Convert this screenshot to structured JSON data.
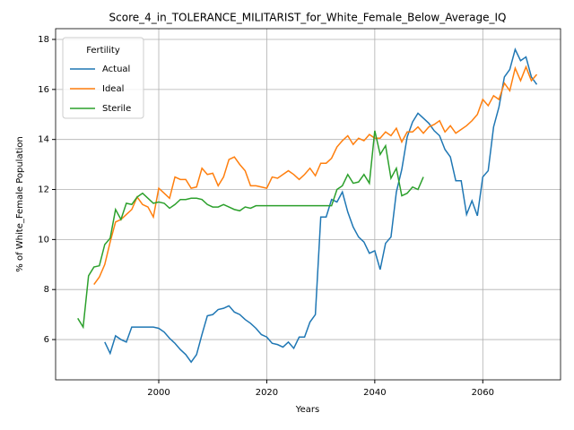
{
  "chart_data": {
    "type": "line",
    "title": "Score_4_in_TOLERANCE_MILITARIST_for_White_Female_Below_Average_IQ",
    "xlabel": "Years",
    "ylabel": "% of White_Female Population",
    "x": [
      1985,
      1986,
      1987,
      1988,
      1989,
      1990,
      1991,
      1992,
      1993,
      1994,
      1995,
      1996,
      1997,
      1998,
      1999,
      2000,
      2001,
      2002,
      2003,
      2004,
      2005,
      2006,
      2007,
      2008,
      2009,
      2010,
      2011,
      2012,
      2013,
      2014,
      2015,
      2016,
      2017,
      2018,
      2019,
      2020,
      2021,
      2022,
      2023,
      2024,
      2025,
      2026,
      2027,
      2028,
      2029,
      2030,
      2031,
      2032,
      2033,
      2034,
      2035,
      2036,
      2037,
      2038,
      2039,
      2040,
      2041,
      2042,
      2043,
      2044,
      2045,
      2046,
      2047,
      2048,
      2049,
      2050,
      2051,
      2052,
      2053,
      2054,
      2055,
      2056,
      2057,
      2058,
      2059,
      2060,
      2061,
      2062,
      2063,
      2064,
      2065,
      2066,
      2067,
      2068,
      2069,
      2070
    ],
    "series": [
      {
        "name": "Actual",
        "color": "#1f77b4",
        "values": [
          null,
          null,
          null,
          null,
          null,
          5.9,
          5.45,
          6.15,
          6.0,
          5.9,
          6.5,
          6.5,
          6.5,
          6.5,
          6.5,
          6.45,
          6.3,
          6.05,
          5.85,
          5.6,
          5.4,
          5.1,
          5.4,
          6.2,
          6.95,
          7.0,
          7.2,
          7.25,
          7.35,
          7.1,
          7.0,
          6.8,
          6.65,
          6.45,
          6.2,
          6.1,
          5.85,
          5.8,
          5.7,
          5.9,
          5.65,
          6.1,
          6.1,
          6.7,
          7.0,
          10.9,
          10.9,
          11.6,
          11.5,
          11.9,
          11.1,
          10.5,
          10.1,
          9.9,
          9.45,
          9.55,
          8.8,
          9.85,
          10.1,
          11.9,
          12.8,
          14.1,
          14.7,
          15.05,
          14.85,
          14.65,
          14.35,
          14.15,
          13.6,
          13.3,
          12.35,
          12.35,
          11.0,
          11.55,
          10.95,
          12.5,
          12.75,
          14.5,
          15.3,
          16.5,
          16.8,
          17.6,
          17.15,
          17.3,
          16.5,
          16.2
        ]
      },
      {
        "name": "Ideal",
        "color": "#ff7f0e",
        "values": [
          null,
          null,
          null,
          8.2,
          8.5,
          9.0,
          9.9,
          10.7,
          10.8,
          11.0,
          11.2,
          11.7,
          11.4,
          11.3,
          10.9,
          12.05,
          11.85,
          11.65,
          12.5,
          12.4,
          12.4,
          12.05,
          12.1,
          12.85,
          12.6,
          12.65,
          12.15,
          12.5,
          13.2,
          13.3,
          13.0,
          12.75,
          12.15,
          12.15,
          12.1,
          12.05,
          12.5,
          12.45,
          12.6,
          12.75,
          12.6,
          12.4,
          12.6,
          12.85,
          12.55,
          13.05,
          13.05,
          13.25,
          13.7,
          13.95,
          14.15,
          13.8,
          14.05,
          13.95,
          14.2,
          14.05,
          14.05,
          14.3,
          14.15,
          14.45,
          13.9,
          14.3,
          14.3,
          14.5,
          14.25,
          14.5,
          14.6,
          14.75,
          14.3,
          14.55,
          14.25,
          14.4,
          14.55,
          14.75,
          15.0,
          15.6,
          15.35,
          15.75,
          15.6,
          16.25,
          15.95,
          16.85,
          16.35,
          16.9,
          16.35,
          16.6
        ]
      },
      {
        "name": "Sterile",
        "color": "#2ca02c",
        "values": [
          6.85,
          6.5,
          8.55,
          8.9,
          8.95,
          9.8,
          10.05,
          11.2,
          10.8,
          11.45,
          11.4,
          11.7,
          11.85,
          11.65,
          11.45,
          11.5,
          11.45,
          11.25,
          11.4,
          11.6,
          11.6,
          11.65,
          11.65,
          11.6,
          11.4,
          11.3,
          11.3,
          11.4,
          11.3,
          11.2,
          11.15,
          11.3,
          11.25,
          11.35,
          11.35,
          11.35,
          11.35,
          11.35,
          11.35,
          11.35,
          11.35,
          11.35,
          11.35,
          11.35,
          11.35,
          11.35,
          11.35,
          11.35,
          12.0,
          12.15,
          12.6,
          12.25,
          12.3,
          12.6,
          12.25,
          14.35,
          13.4,
          13.75,
          12.45,
          12.85,
          11.75,
          11.85,
          12.1,
          12.0,
          12.5,
          null,
          null,
          null,
          null,
          null,
          null,
          null,
          null,
          null,
          null,
          null,
          null,
          null,
          null,
          null,
          null,
          null,
          null,
          null,
          null,
          null
        ]
      }
    ],
    "xlim": [
      1980.9,
      2074.4
    ],
    "ylim": [
      4.39,
      18.43
    ],
    "xticks": [
      2000,
      2020,
      2040,
      2060
    ],
    "yticks": [
      6,
      8,
      10,
      12,
      14,
      16,
      18
    ],
    "grid": true,
    "legend_title": "Fertility",
    "legend_loc": "upper left"
  }
}
